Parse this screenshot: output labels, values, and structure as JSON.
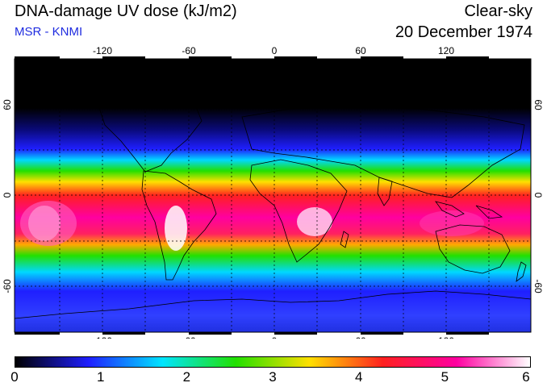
{
  "header": {
    "title": "DNA-damage UV dose (kJ/m2)",
    "subtitle": "MSR - KNMI",
    "mode": "Clear-sky",
    "date": "20 December 1974"
  },
  "map": {
    "lon_ticks": [
      "-120",
      "-60",
      "0",
      "60",
      "120"
    ],
    "lat_ticks_left": [
      "60",
      "0",
      "-60"
    ],
    "lat_ticks_right": [
      "60",
      "0",
      "-60"
    ],
    "lon_range": [
      -180,
      180
    ],
    "lat_range": [
      -90,
      90
    ],
    "grid": true
  },
  "colors": {
    "scale": [
      "#000000",
      "#1f1fff",
      "#00e5ff",
      "#22e000",
      "#ffe000",
      "#ff2020",
      "#ff00a0",
      "#ffffff"
    ]
  },
  "colorbar": {
    "ticks": [
      "0",
      "1",
      "2",
      "3",
      "4",
      "5",
      "6"
    ],
    "min": 0,
    "max": 6
  }
}
